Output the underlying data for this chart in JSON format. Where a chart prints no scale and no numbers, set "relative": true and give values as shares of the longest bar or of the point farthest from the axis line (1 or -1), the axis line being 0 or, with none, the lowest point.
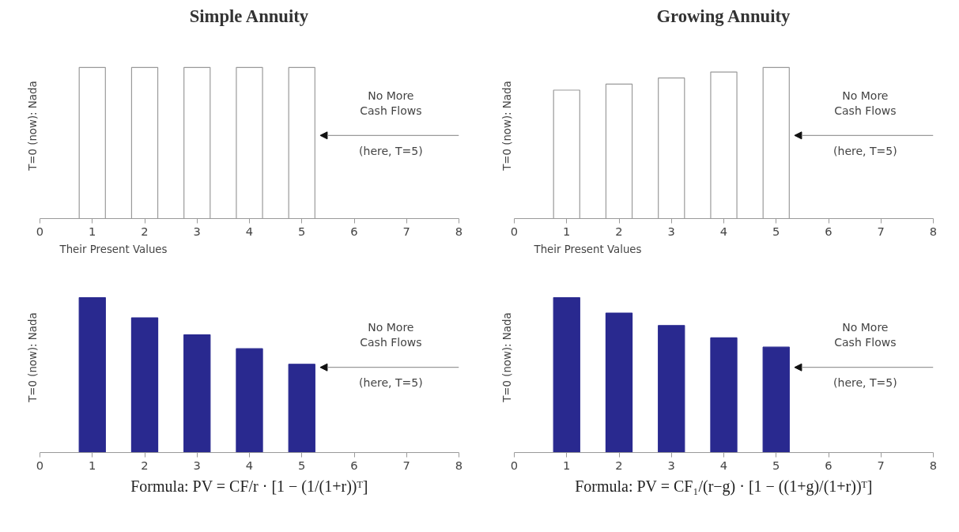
{
  "chart_data": [
    {
      "type": "bar",
      "title": "Simple Annuity",
      "ylabel": "T=0 (now):  Nada",
      "x": [
        1,
        2,
        3,
        4,
        5
      ],
      "values": [
        1,
        1,
        1,
        1,
        1
      ],
      "color": "#ffffff",
      "relative": true,
      "xlim": [
        0,
        8
      ],
      "xticks": [
        0,
        1,
        2,
        3,
        4,
        5,
        6,
        7,
        8
      ],
      "tick_labels": "x",
      "annotations": [
        "No More\nCash Flows",
        "(here, T=5)"
      ]
    },
    {
      "type": "bar",
      "title": "Growing Annuity",
      "ylabel": "T=0 (now):  Nada",
      "x": [
        1,
        2,
        3,
        4,
        5
      ],
      "values": [
        0.85,
        0.89,
        0.93,
        0.97,
        1
      ],
      "color": "#ffffff",
      "relative": true,
      "xlim": [
        0,
        8
      ],
      "xticks": [
        0,
        1,
        2,
        3,
        4,
        5,
        6,
        7,
        8
      ],
      "tick_labels": "x",
      "annotations": [
        "No More\nCash Flows",
        "(here, T=5)"
      ]
    },
    {
      "type": "bar",
      "subtitle": "Their Present Values",
      "ylabel": "T=0 (now):  Nada",
      "x": [
        1,
        2,
        3,
        4,
        5
      ],
      "values": [
        1,
        0.87,
        0.76,
        0.67,
        0.57
      ],
      "color": "#29298f",
      "relative": true,
      "xlim": [
        0,
        8
      ],
      "xticks": [
        0,
        1,
        2,
        3,
        4,
        5,
        6,
        7,
        8
      ],
      "tick_labels": "x",
      "annotations": [
        "No More\nCash Flows",
        "(here, T=5)",
        "Formula: PV = CF/r · [1 − (1/(1+r))ᵀ]"
      ]
    },
    {
      "type": "bar",
      "subtitle": "Their Present Values",
      "ylabel": "T=0 (now):  Nada",
      "x": [
        1,
        2,
        3,
        4,
        5
      ],
      "values": [
        1,
        0.9,
        0.82,
        0.74,
        0.68
      ],
      "color": "#29298f",
      "relative": true,
      "xlim": [
        0,
        8
      ],
      "xticks": [
        0,
        1,
        2,
        3,
        4,
        5,
        6,
        7,
        8
      ],
      "tick_labels": "x",
      "annotations": [
        "No More\nCash Flows",
        "(here, T=5)",
        "Formula: PV = CF₁/(r−g) · [1 − ((1+g)/(1+r))ᵀ]"
      ]
    }
  ]
}
